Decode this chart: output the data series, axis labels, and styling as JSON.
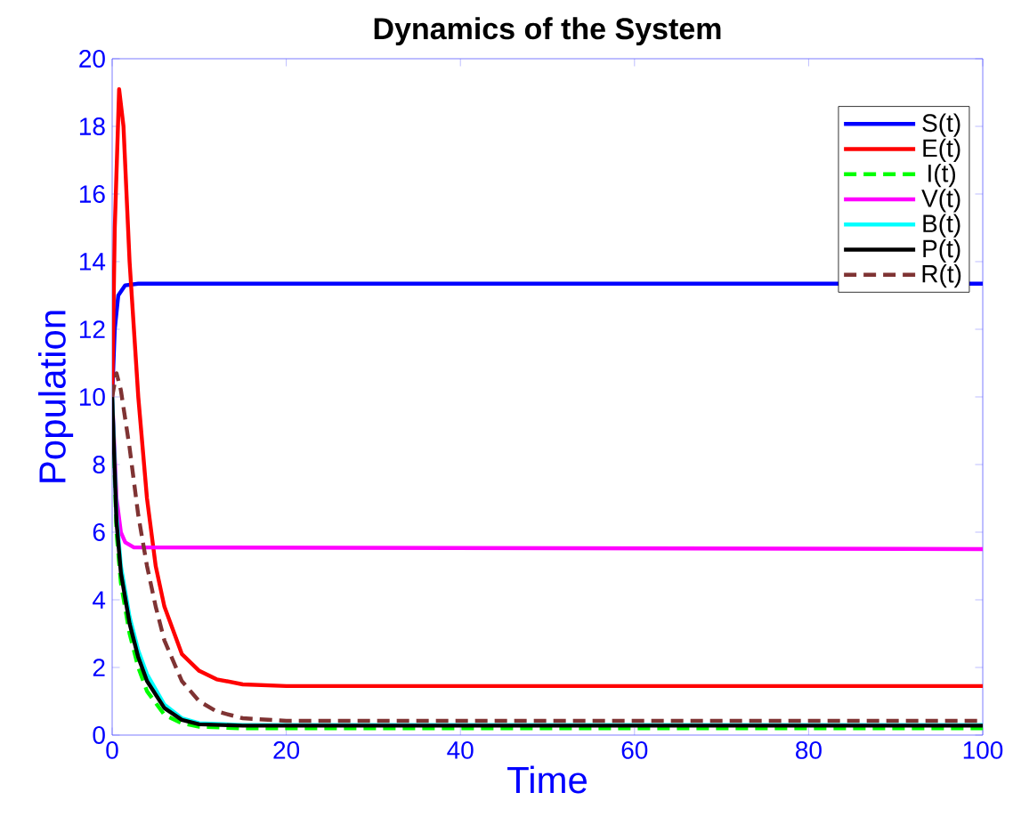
{
  "chart_data": {
    "type": "line",
    "title": "Dynamics of the System",
    "xlabel": "Time",
    "ylabel": "Population",
    "xlim": [
      0,
      100
    ],
    "ylim": [
      0,
      20
    ],
    "xticks": [
      0,
      20,
      40,
      60,
      80,
      100
    ],
    "yticks": [
      0,
      2,
      4,
      6,
      8,
      10,
      12,
      14,
      16,
      18,
      20
    ],
    "grid": false,
    "legend": "top right",
    "marker": "none",
    "series": [
      {
        "name": "S(t)",
        "color": "#0000ff",
        "line_style": "solid",
        "x": [
          0,
          0.3,
          0.7,
          1.5,
          3,
          100
        ],
        "values": [
          10,
          12,
          13,
          13.3,
          13.35,
          13.35
        ]
      },
      {
        "name": "E(t)",
        "color": "#ff0000",
        "line_style": "solid",
        "x": [
          0,
          0.3,
          0.8,
          1.3,
          2,
          3,
          4,
          5,
          6,
          8,
          10,
          12,
          15,
          20,
          100
        ],
        "values": [
          10,
          15,
          19.1,
          18,
          14,
          10,
          7,
          5,
          3.8,
          2.4,
          1.9,
          1.65,
          1.5,
          1.45,
          1.45
        ]
      },
      {
        "name": "I(t)",
        "color": "#00ff00",
        "line_style": "dashed",
        "x": [
          0,
          0.5,
          1,
          2,
          3,
          4,
          6,
          8,
          10,
          15,
          100
        ],
        "values": [
          10,
          6,
          4.5,
          3,
          2,
          1.3,
          0.6,
          0.35,
          0.25,
          0.2,
          0.2
        ]
      },
      {
        "name": "V(t)",
        "color": "#ff00ff",
        "line_style": "solid",
        "x": [
          0,
          0.5,
          1,
          1.5,
          2.5,
          100
        ],
        "values": [
          10,
          7,
          6,
          5.7,
          5.55,
          5.5
        ]
      },
      {
        "name": "B(t)",
        "color": "#00ffff",
        "line_style": "solid",
        "x": [
          0,
          0.5,
          1,
          2,
          3,
          4,
          6,
          8,
          10,
          15,
          100
        ],
        "values": [
          10,
          6.5,
          5,
          3.5,
          2.5,
          1.8,
          0.9,
          0.5,
          0.35,
          0.3,
          0.3
        ]
      },
      {
        "name": "P(t)",
        "color": "#000000",
        "line_style": "solid",
        "x": [
          0,
          0.5,
          1,
          2,
          3,
          4,
          6,
          8,
          10,
          15,
          100
        ],
        "values": [
          10,
          6.3,
          4.8,
          3.3,
          2.3,
          1.6,
          0.8,
          0.45,
          0.32,
          0.28,
          0.28
        ]
      },
      {
        "name": "R(t)",
        "color": "#7f3333",
        "line_style": "dashed",
        "x": [
          0,
          0.5,
          1,
          2,
          3,
          4,
          5,
          6,
          8,
          10,
          12,
          15,
          20,
          100
        ],
        "values": [
          10,
          10.7,
          10.2,
          8.5,
          6.5,
          5,
          3.8,
          2.8,
          1.6,
          1,
          0.7,
          0.5,
          0.42,
          0.42
        ]
      }
    ]
  }
}
